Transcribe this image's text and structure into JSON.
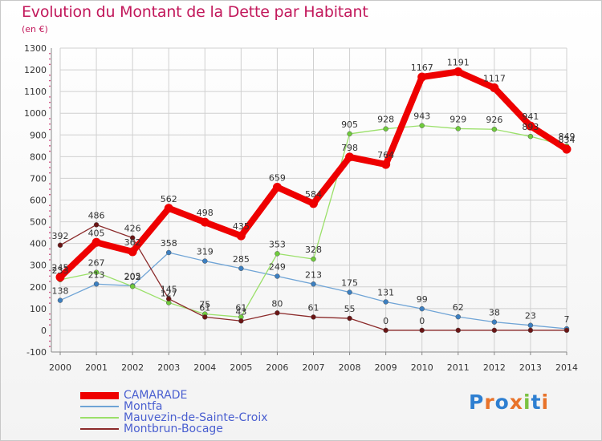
{
  "title": "Evolution du Montant de la Dette par Habitant",
  "subtitle": "(en €)",
  "colors": {
    "title": "#c2185b",
    "grid": "#d0d0d0",
    "axis": "#888888",
    "tick": "#c2185b"
  },
  "logo": {
    "text": "Proxiti",
    "letters": [
      {
        "char": "P",
        "color": "#2e7fd1"
      },
      {
        "char": "r",
        "color": "#e8732a"
      },
      {
        "char": "o",
        "color": "#2e7fd1"
      },
      {
        "char": "x",
        "color": "#e8732a"
      },
      {
        "char": "i",
        "color": "#7cc242"
      },
      {
        "char": "t",
        "color": "#2e7fd1"
      },
      {
        "char": "i",
        "color": "#e8732a"
      }
    ]
  },
  "chart_data": {
    "type": "line",
    "title": "Evolution du Montant de la Dette par Habitant",
    "ylabel": "(en €)",
    "x": [
      "2000",
      "2001",
      "2002",
      "2003",
      "2004",
      "2005",
      "2006",
      "2007",
      "2008",
      "2009",
      "2010",
      "2011",
      "2012",
      "2013",
      "2014"
    ],
    "yticks": [
      -100,
      0,
      100,
      200,
      300,
      400,
      500,
      600,
      700,
      800,
      900,
      1000,
      1100,
      1200,
      1300
    ],
    "ylim": [
      -100,
      1300
    ],
    "grid": true,
    "legend_position": "bottom-left",
    "series": [
      {
        "name": "CAMARADE",
        "color": "#ee0000",
        "marker": "#ee0000",
        "emphasis": true,
        "values": [
          245,
          405,
          362,
          562,
          498,
          435,
          659,
          584,
          798,
          764,
          1167,
          1191,
          1117,
          941,
          834
        ],
        "labels": [
          "245",
          "405",
          "362",
          "562",
          "498",
          "435",
          "659",
          "584",
          "798",
          "764",
          "1167",
          "1191",
          "1117",
          "941",
          "834"
        ]
      },
      {
        "name": "Montfa",
        "color": "#6fa4d6",
        "marker": "#3c7fc0",
        "values": [
          138,
          213,
          205,
          358,
          319,
          285,
          249,
          213,
          175,
          131,
          99,
          62,
          38,
          23,
          7
        ],
        "labels": [
          "138",
          "213",
          "205",
          "358",
          "319",
          "285",
          "249",
          "213",
          "175",
          "131",
          "99",
          "62",
          "38",
          "23",
          "7"
        ]
      },
      {
        "name": "Mauvezin-de-Sainte-Croix",
        "color": "#9be06a",
        "marker": "#6fcb3c",
        "values": [
          233,
          267,
          202,
          127,
          75,
          61,
          353,
          328,
          905,
          928,
          943,
          929,
          926,
          893,
          849
        ],
        "labels": [
          "233",
          "267",
          "202",
          "127",
          "75",
          "61",
          "353",
          "328",
          "905",
          "928",
          "943",
          "929",
          "926",
          "893",
          "849"
        ]
      },
      {
        "name": "Montbrun-Bocage",
        "color": "#8b2a2a",
        "marker": "#6a1515",
        "values": [
          392,
          486,
          426,
          145,
          61,
          43,
          80,
          61,
          55,
          0,
          0,
          0,
          0,
          0,
          0
        ],
        "labels": [
          "392",
          "486",
          "426",
          "145",
          "61",
          "43",
          "80",
          "61",
          "55",
          "0",
          "0",
          "",
          "",
          "",
          ""
        ]
      }
    ]
  }
}
